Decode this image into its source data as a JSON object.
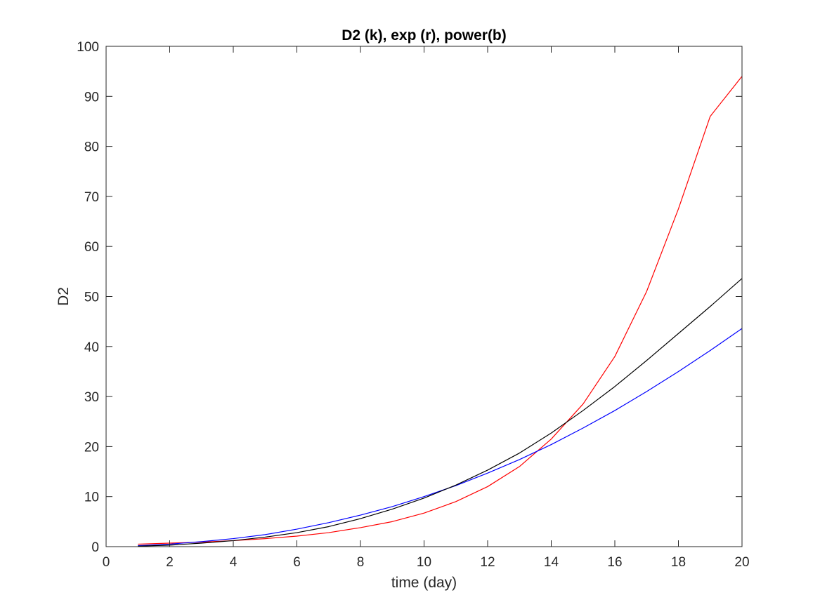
{
  "chart_data": {
    "type": "line",
    "title": "D2 (k), exp (r), power(b)",
    "xlabel": "time (day)",
    "ylabel": "D2",
    "xlim": [
      0,
      20
    ],
    "ylim": [
      0,
      100
    ],
    "xticks": [
      0,
      2,
      4,
      6,
      8,
      10,
      12,
      14,
      16,
      18,
      20
    ],
    "yticks": [
      0,
      10,
      20,
      30,
      40,
      50,
      60,
      70,
      80,
      90,
      100
    ],
    "grid": false,
    "box": true,
    "series": [
      {
        "color": "#ff0000",
        "x": [
          1,
          2,
          3,
          4,
          5,
          6,
          7,
          8,
          9,
          10,
          11,
          12,
          13,
          14,
          15,
          16,
          17,
          18,
          19,
          20
        ],
        "y": [
          0.5,
          0.7,
          0.9,
          1.2,
          1.6,
          2.1,
          2.8,
          3.8,
          5.0,
          6.7,
          9.0,
          12.0,
          16.0,
          21.5,
          28.5,
          38.0,
          51.0,
          67.5,
          86.0,
          94.0
        ]
      },
      {
        "color": "#0000ff",
        "x": [
          1,
          2,
          3,
          4,
          5,
          6,
          7,
          8,
          9,
          10,
          11,
          12,
          13,
          14,
          15,
          16,
          17,
          18,
          19,
          20
        ],
        "y": [
          0.2,
          0.5,
          1.0,
          1.6,
          2.4,
          3.5,
          4.8,
          6.3,
          8.0,
          10.0,
          12.2,
          14.7,
          17.4,
          20.4,
          23.7,
          27.2,
          31.0,
          35.0,
          39.2,
          43.6
        ]
      },
      {
        "color": "#000000",
        "x": [
          1,
          2,
          3,
          4,
          5,
          6,
          7,
          8,
          9,
          10,
          11,
          12,
          13,
          14,
          15,
          16,
          17,
          18,
          19,
          20
        ],
        "y": [
          0.1,
          0.3,
          0.7,
          1.2,
          1.9,
          2.8,
          4.0,
          5.6,
          7.5,
          9.7,
          12.3,
          15.3,
          18.7,
          22.7,
          27.2,
          32.0,
          37.2,
          42.6,
          48.0,
          53.6
        ]
      }
    ]
  }
}
